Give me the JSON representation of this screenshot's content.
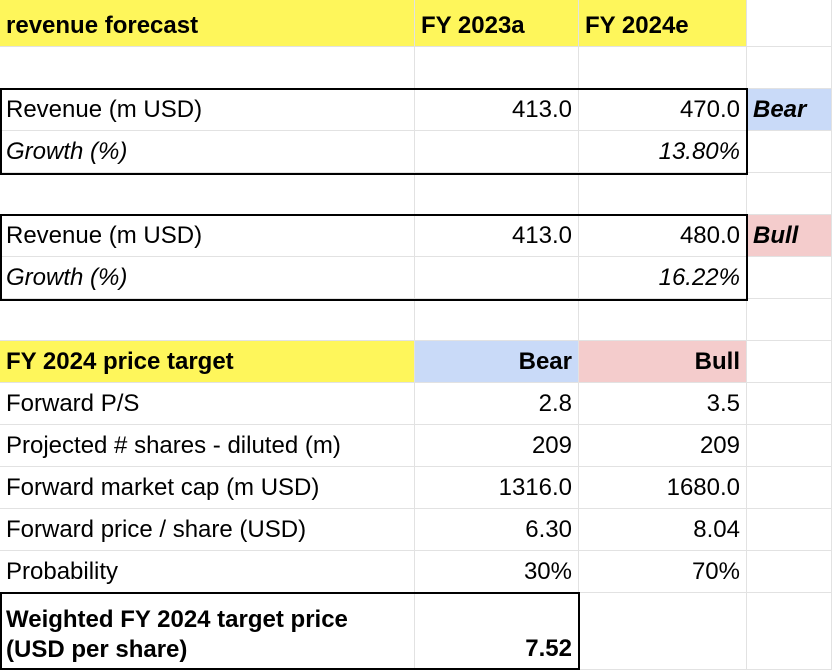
{
  "header": {
    "title": "revenue forecast",
    "col_fy2023": "FY 2023a",
    "col_fy2024": "FY 2024e"
  },
  "bear_forecast": {
    "revenue_label": "Revenue (m USD)",
    "revenue_2023": "413.0",
    "revenue_2024": "470.0",
    "scenario_tag": "Bear",
    "growth_label": "Growth (%)",
    "growth_2024": "13.80%"
  },
  "bull_forecast": {
    "revenue_label": "Revenue (m USD)",
    "revenue_2023": "413.0",
    "revenue_2024": "480.0",
    "scenario_tag": "Bull",
    "growth_label": "Growth (%)",
    "growth_2024": "16.22%"
  },
  "price_target": {
    "title": "FY 2024 price target",
    "col_bear": "Bear",
    "col_bull": "Bull",
    "rows": [
      {
        "label": "Forward P/S",
        "bear": "2.8",
        "bull": "3.5"
      },
      {
        "label": "Projected # shares - diluted (m)",
        "bear": "209",
        "bull": "209"
      },
      {
        "label": "Forward market cap (m USD)",
        "bear": "1316.0",
        "bull": "1680.0"
      },
      {
        "label": "Forward price / share (USD)",
        "bear": "6.30",
        "bull": "8.04"
      },
      {
        "label": "Probability",
        "bear": "30%",
        "bull": "70%"
      }
    ],
    "weighted_label": "Weighted FY 2024 target price (USD per share)",
    "weighted_value": "7.52"
  },
  "colors": {
    "header_yellow": "#fef65b",
    "bear_blue": "#c9daf8",
    "bull_pink": "#f4cccc",
    "gridline": "#e2e2e2"
  }
}
